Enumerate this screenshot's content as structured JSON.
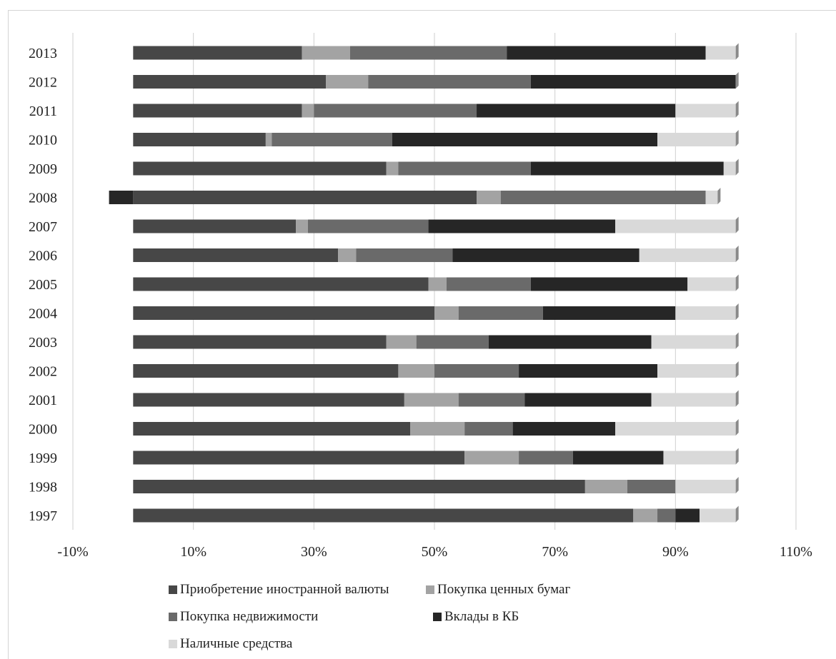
{
  "chart_data": {
    "type": "bar",
    "orientation": "horizontal",
    "stacked": true,
    "categories": [
      "2013",
      "2012",
      "2011",
      "2010",
      "2009",
      "2008",
      "2007",
      "2006",
      "2005",
      "2004",
      "2003",
      "2002",
      "2001",
      "2000",
      "1999",
      "1998",
      "1997"
    ],
    "series": [
      {
        "name": "Приобретение иностранной валюты",
        "color": "#474747",
        "values": [
          28,
          32,
          28,
          22,
          42,
          57,
          27,
          34,
          49,
          50,
          42,
          44,
          45,
          46,
          55,
          75,
          83
        ]
      },
      {
        "name": "Покупка ценных бумаг",
        "color": "#a3a3a3",
        "values": [
          8,
          7,
          2,
          1,
          2,
          4,
          2,
          3,
          3,
          4,
          5,
          6,
          9,
          9,
          9,
          7,
          4
        ]
      },
      {
        "name": "Покупка недвижимости",
        "color": "#6a6a6a",
        "values": [
          26,
          27,
          27,
          20,
          22,
          34,
          20,
          16,
          14,
          14,
          12,
          14,
          11,
          8,
          9,
          8,
          3
        ]
      },
      {
        "name": "Вклады в КБ",
        "color": "#262626",
        "values": [
          33,
          34,
          33,
          44,
          32,
          -4,
          31,
          31,
          26,
          22,
          27,
          23,
          21,
          17,
          15,
          0,
          4
        ]
      },
      {
        "name": "Наличные средства",
        "color": "#d9d9d9",
        "values": [
          5,
          0,
          10,
          13,
          2,
          2,
          20,
          16,
          8,
          10,
          14,
          13,
          14,
          20,
          12,
          10,
          6
        ]
      }
    ],
    "xlim": [
      -10,
      110
    ],
    "xticks": [
      "-10%",
      "10%",
      "30%",
      "50%",
      "70%",
      "90%",
      "110%"
    ],
    "xtick_values": [
      -10,
      10,
      30,
      50,
      70,
      90,
      110
    ],
    "grid": true,
    "legend_position": "bottom",
    "title": "",
    "xlabel": "",
    "ylabel": ""
  }
}
